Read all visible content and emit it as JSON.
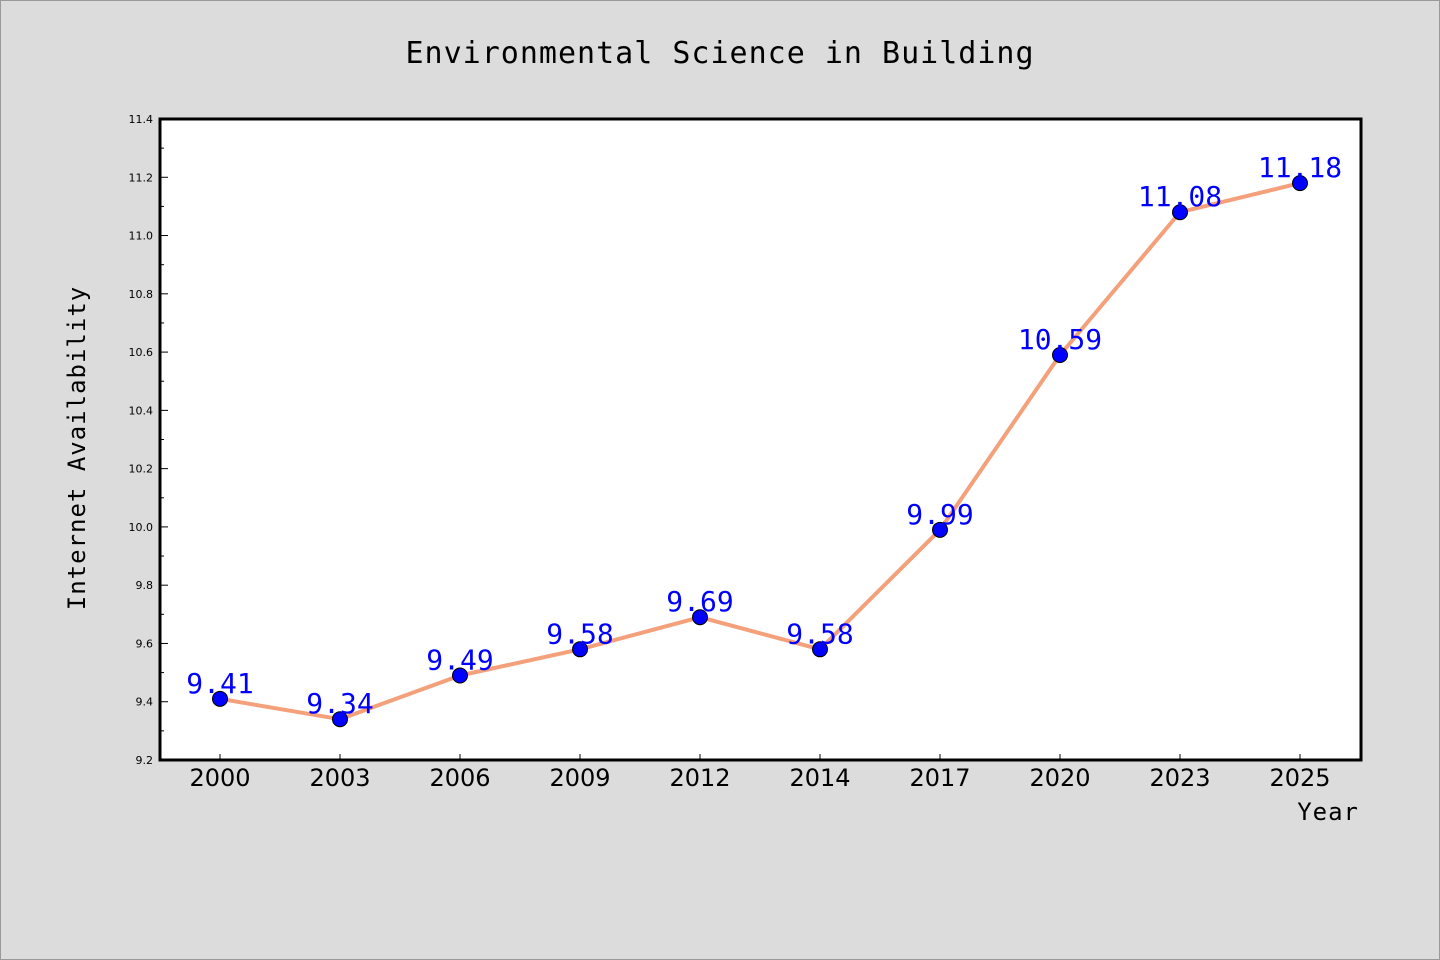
{
  "chart_data": {
    "type": "line",
    "title": "Environmental Science in Building",
    "xlabel": "Year",
    "ylabel": "Internet Availability",
    "categories": [
      "2000",
      "2003",
      "2006",
      "2009",
      "2012",
      "2014",
      "2017",
      "2020",
      "2023",
      "2025"
    ],
    "series": [
      {
        "values": [
          9.41,
          9.34,
          9.49,
          9.58,
          9.69,
          9.58,
          9.99,
          10.59,
          11.08,
          11.18
        ],
        "line_color": "#f4a07a",
        "marker_color": "#0000ff"
      }
    ],
    "data_labels": [
      "9.41",
      "9.34",
      "9.49",
      "9.58",
      "9.69",
      "9.58",
      "9.99",
      "10.59",
      "11.08",
      "11.18"
    ],
    "ylim": [
      9.2,
      11.4
    ],
    "yticks": [
      "9.2",
      "9.4",
      "9.6",
      "9.8",
      "10.0",
      "10.2",
      "10.4",
      "10.6",
      "10.8",
      "11.0",
      "11.2",
      "11.4"
    ],
    "grid": false,
    "legend": "none",
    "background_color": "#dcdcdc",
    "plot_background_color": "#ffffff",
    "data_label_color": "#0000ff"
  }
}
